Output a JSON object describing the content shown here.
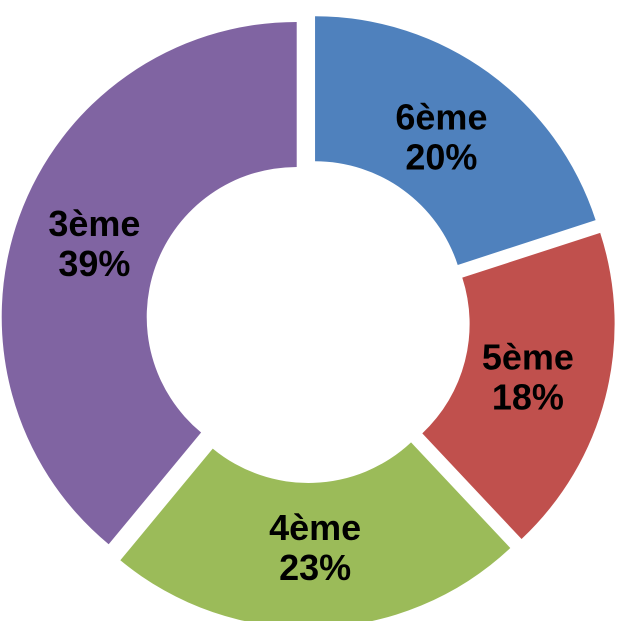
{
  "chart_data": {
    "type": "pie",
    "variant": "donut",
    "title": "",
    "categories": [
      "6ème",
      "5ème",
      "4ème",
      "3ème"
    ],
    "values": [
      20,
      18,
      23,
      39
    ],
    "value_labels": [
      "20%",
      "18%",
      "23%",
      "39%"
    ],
    "colors": [
      "#4F81BD",
      "#C0504D",
      "#9BBB59",
      "#8064A2"
    ],
    "exploded": true,
    "legend": "none",
    "data_labels": "category and percentage, inside slices"
  }
}
